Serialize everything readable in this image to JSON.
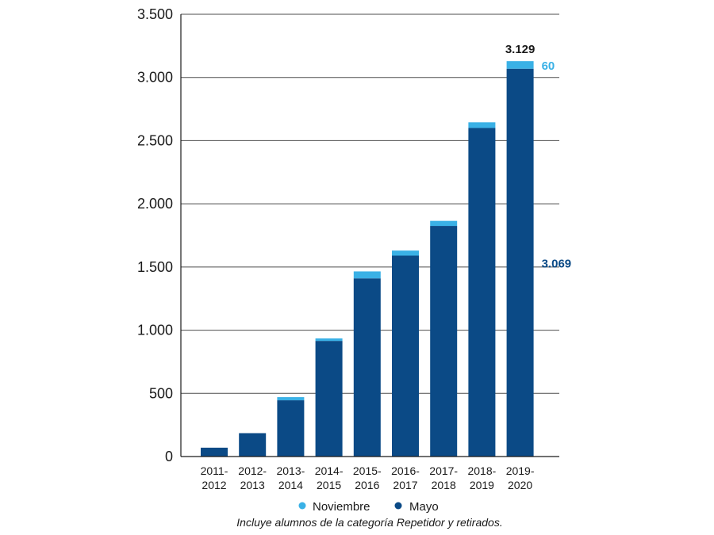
{
  "chart_data": {
    "type": "bar",
    "stacked": true,
    "categories": [
      [
        "2011-",
        "2012"
      ],
      [
        "2012-",
        "2013"
      ],
      [
        "2013-",
        "2014"
      ],
      [
        "2014-",
        "2015"
      ],
      [
        "2015-",
        "2016"
      ],
      [
        "2016-",
        "2017"
      ],
      [
        "2017-",
        "2018"
      ],
      [
        "2018-",
        "2019"
      ],
      [
        "2019-",
        "2020"
      ]
    ],
    "series": [
      {
        "name": "Mayo",
        "color": "#0b4a86",
        "values": [
          70,
          185,
          445,
          915,
          1410,
          1590,
          1825,
          2600,
          3069
        ]
      },
      {
        "name": "Noviembre",
        "color": "#3ab1e6",
        "values": [
          0,
          0,
          25,
          20,
          55,
          40,
          40,
          45,
          60
        ]
      }
    ],
    "ylim": [
      0,
      3500
    ],
    "yticks": [
      {
        "value": 0,
        "label": "0"
      },
      {
        "value": 500,
        "label": "500"
      },
      {
        "value": 1000,
        "label": "1.000"
      },
      {
        "value": 1500,
        "label": "1.500"
      },
      {
        "value": 2000,
        "label": "2.000"
      },
      {
        "value": 2500,
        "label": "2.500"
      },
      {
        "value": 3000,
        "label": "3.000"
      },
      {
        "value": 3500,
        "label": "3.500"
      }
    ],
    "grid": true,
    "legend": {
      "position": "bottom",
      "entries": [
        {
          "label": "Noviembre",
          "color": "#3ab1e6"
        },
        {
          "label": "Mayo",
          "color": "#0b4a86"
        }
      ]
    },
    "annotations": {
      "total": {
        "label": "3.129",
        "color": "#1a1a1a"
      },
      "noviembre": {
        "label": "60",
        "color": "#3ab1e6"
      },
      "mayo": {
        "label": "3.069",
        "color": "#0b4a86"
      }
    },
    "note": "Incluye alumnos de la categoría Repetidor y retirados."
  }
}
